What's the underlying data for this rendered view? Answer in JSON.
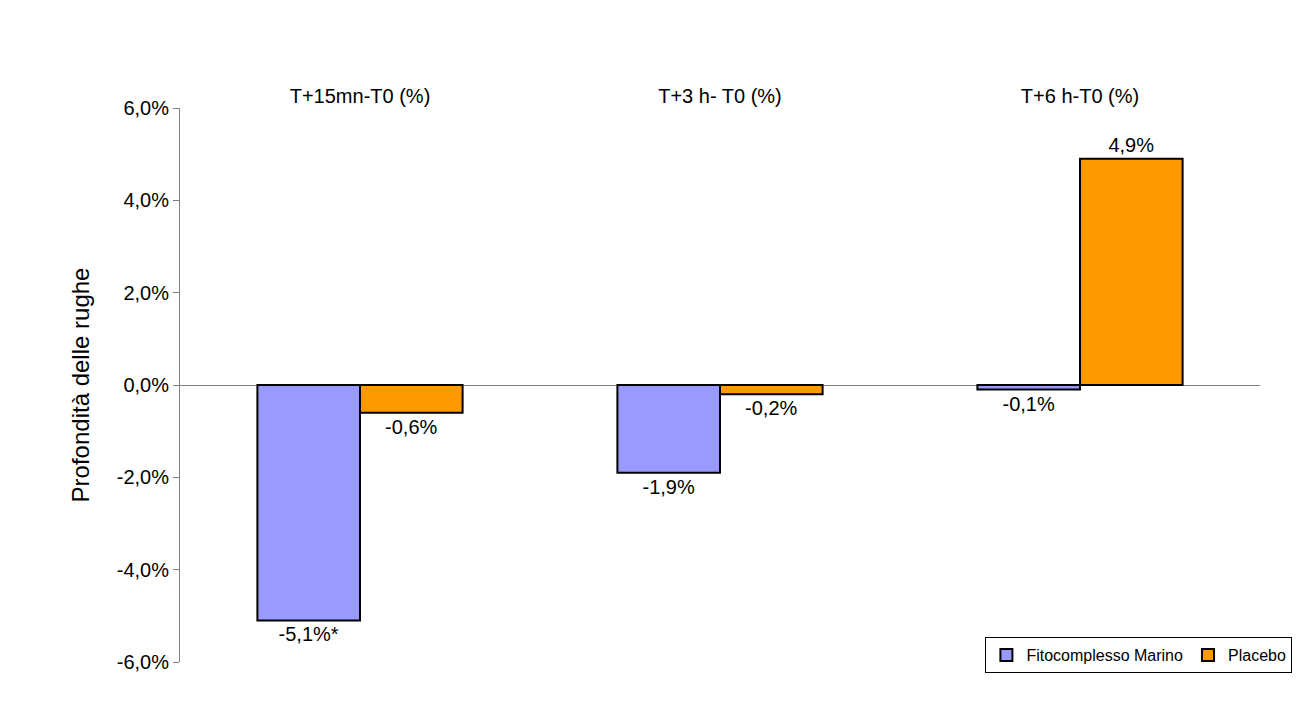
{
  "chart_data": {
    "type": "bar",
    "y_label": "Profondità delle rughe",
    "categories": [
      "T+15mn-T0 (%)",
      "T+3 h- T0 (%)",
      "T+6 h-T0 (%)"
    ],
    "series": [
      {
        "name": "Fitocomplesso Marino",
        "color": "#9999ff",
        "values": [
          -5.1,
          -1.9,
          -0.1
        ],
        "value_labels": [
          "-5,1%*",
          "-1,9%",
          "-0,1%"
        ]
      },
      {
        "name": "Placebo",
        "color": "#ff9900",
        "values": [
          -0.6,
          -0.2,
          4.9
        ],
        "value_labels": [
          "-0,6%",
          "-0,2%",
          "4,9%"
        ]
      }
    ],
    "ylim": [
      -6,
      6
    ],
    "yticks": [
      {
        "value": -6,
        "label": "-6,0%"
      },
      {
        "value": -4,
        "label": "-4,0%"
      },
      {
        "value": -2,
        "label": "-2,0%"
      },
      {
        "value": 0,
        "label": "0,0%"
      },
      {
        "value": 2,
        "label": "2,0%"
      },
      {
        "value": 4,
        "label": "4,0%"
      },
      {
        "value": 6,
        "label": "6,0%"
      }
    ],
    "grid": false,
    "legend": "bottom right",
    "data_labels": true
  }
}
